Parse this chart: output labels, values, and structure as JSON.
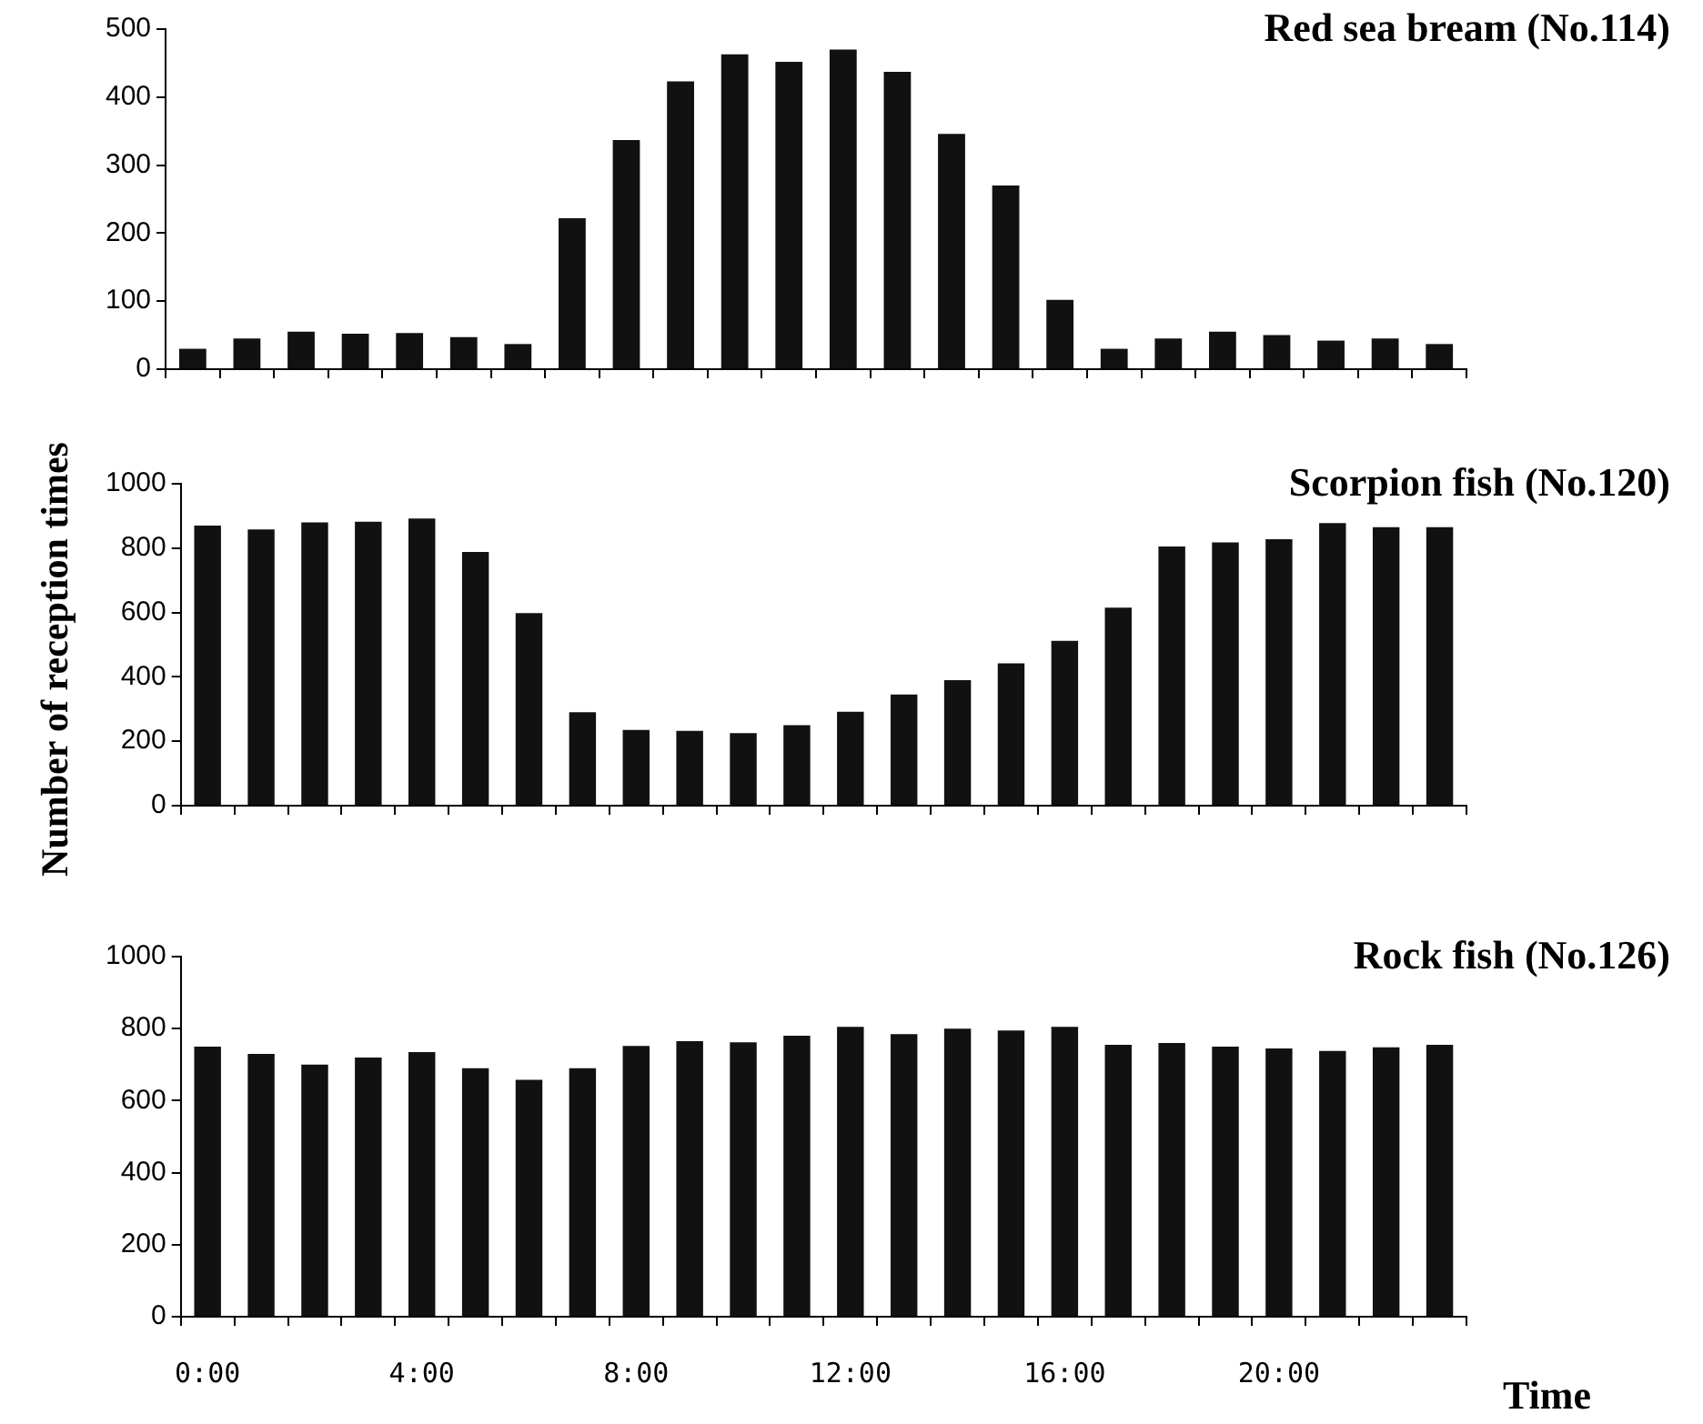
{
  "chart_data": [
    {
      "type": "bar",
      "title": "Red sea bream (No.114)",
      "categories": [
        null,
        null,
        null,
        null,
        null,
        null,
        null,
        null,
        null,
        null,
        null,
        null,
        null,
        null,
        null,
        null,
        null,
        null,
        null,
        null,
        null,
        null,
        null,
        null
      ],
      "series": [
        {
          "color": "#111111",
          "values": [
            30,
            45,
            55,
            52,
            53,
            47,
            37,
            222,
            337,
            423,
            463,
            452,
            470,
            437,
            346,
            270,
            102,
            30,
            45,
            55,
            50,
            42,
            45,
            37
          ]
        }
      ],
      "ylim": [
        0,
        500
      ],
      "yticks": [
        0,
        100,
        200,
        300,
        400,
        500
      ],
      "grid": false,
      "legend": false,
      "tick_labels": "y"
    },
    {
      "type": "bar",
      "title": "Scorpion fish (No.120)",
      "ylabel": "Number of reception times",
      "categories": [
        null,
        null,
        null,
        null,
        null,
        null,
        null,
        null,
        null,
        null,
        null,
        null,
        null,
        null,
        null,
        null,
        null,
        null,
        null,
        null,
        null,
        null,
        null,
        null
      ],
      "series": [
        {
          "color": "#111111",
          "values": [
            870,
            858,
            880,
            882,
            892,
            788,
            598,
            290,
            235,
            232,
            225,
            250,
            292,
            345,
            390,
            442,
            512,
            615,
            805,
            818,
            828,
            878,
            865,
            865
          ]
        }
      ],
      "ylim": [
        0,
        1000
      ],
      "yticks": [
        0,
        200,
        400,
        600,
        800,
        1000
      ],
      "grid": false,
      "legend": false,
      "tick_labels": "y"
    },
    {
      "type": "bar",
      "title": "Rock fish (No.126)",
      "xlabel": "Time",
      "categories": [
        "0:00",
        null,
        null,
        null,
        "4:00",
        null,
        null,
        null,
        "8:00",
        null,
        null,
        null,
        "12:00",
        null,
        null,
        null,
        "16:00",
        null,
        null,
        null,
        "20:00",
        null,
        null,
        null
      ],
      "series": [
        {
          "color": "#111111",
          "values": [
            750,
            730,
            700,
            720,
            735,
            690,
            658,
            690,
            752,
            765,
            762,
            780,
            805,
            785,
            800,
            795,
            805,
            755,
            760,
            750,
            745,
            738,
            748,
            755
          ]
        }
      ],
      "ylim": [
        0,
        1000
      ],
      "yticks": [
        0,
        200,
        400,
        600,
        800,
        1000
      ],
      "grid": false,
      "legend": false
    }
  ]
}
